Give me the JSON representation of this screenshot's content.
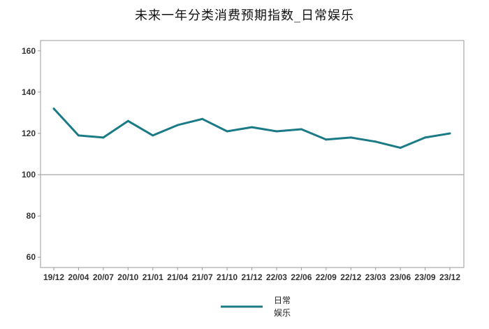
{
  "chart_data": {
    "type": "line",
    "title": "未来一年分类消费预期指数_日常娱乐",
    "categories": [
      "19/12",
      "20/04",
      "20/07",
      "20/10",
      "21/01",
      "21/04",
      "21/07",
      "21/10",
      "21/12",
      "22/03",
      "22/06",
      "22/09",
      "22/12",
      "23/03",
      "23/06",
      "23/09",
      "23/12"
    ],
    "series": [
      {
        "name": "日常娱乐",
        "values": [
          132,
          119,
          118,
          126,
          119,
          124,
          127,
          121,
          123,
          121,
          122,
          117,
          118,
          116,
          113,
          118,
          120
        ]
      }
    ],
    "ylim": [
      55,
      165
    ],
    "yticks": [
      60,
      80,
      100,
      120,
      140,
      160
    ],
    "ytick_labels": [
      "60",
      "80",
      "100",
      "120",
      "140",
      "160"
    ],
    "reference_line": 100,
    "legend": {
      "position": "bottom",
      "label_line1": "日常",
      "label_line2": "娱乐"
    },
    "colors": {
      "series": "#1a7a86",
      "axis": "#9a9a9a",
      "refline": "#9a9a9a"
    },
    "grid": false,
    "xlabel": "",
    "ylabel": ""
  }
}
